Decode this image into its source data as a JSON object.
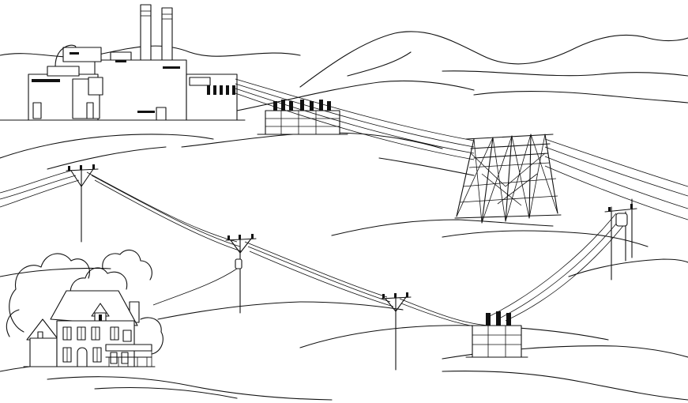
{
  "scene": {
    "background_color": "#ffffff",
    "line_color": "#111111",
    "elements": [
      "power-plant",
      "step-up-substation",
      "transmission-tower",
      "distribution-poles",
      "pole-transformer",
      "distribution-substation",
      "house"
    ]
  }
}
